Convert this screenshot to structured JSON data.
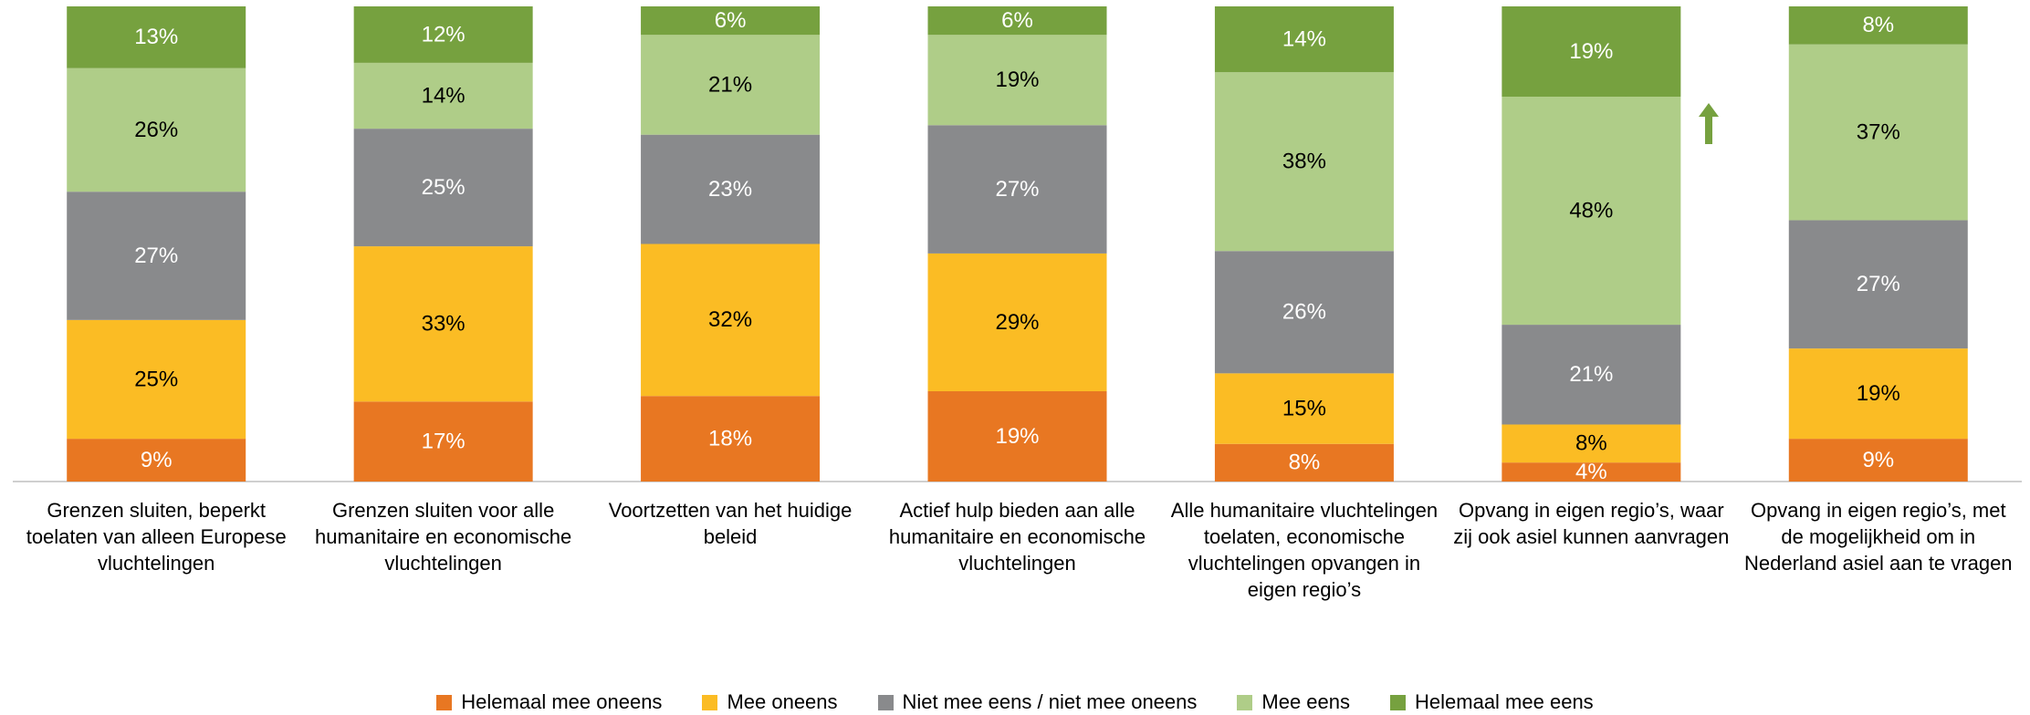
{
  "chart_data": {
    "type": "bar",
    "stacked": true,
    "categories": [
      "Grenzen sluiten, beperkt toelaten van alleen Europese vluchtelingen",
      "Grenzen sluiten voor alle humanitaire en economische vluchtelingen",
      "Voortzetten van het huidige beleid",
      "Actief hulp bieden aan alle humanitaire en economische vluchtelingen",
      "Alle humanitaire vluchtelingen toelaten, economische vluchtelingen opvangen in eigen regio’s",
      "Opvang in eigen regio’s, waar zij ook asiel kunnen aanvragen",
      "Opvang in eigen regio’s, met de mogelijkheid om in Nederland asiel aan te vragen"
    ],
    "series": [
      {
        "name": "Helemaal mee oneens",
        "color": "#e87722",
        "values": [
          9,
          17,
          18,
          19,
          8,
          4,
          9
        ],
        "value_labels": [
          "9%",
          "17%",
          "18%",
          "19%",
          "8%",
          "4%",
          "9%"
        ]
      },
      {
        "name": "Mee oneens",
        "color": "#fbbc24",
        "values": [
          25,
          33,
          32,
          29,
          15,
          8,
          19
        ],
        "value_labels": [
          "25%",
          "33%",
          "32%",
          "29%",
          "15%",
          "8%",
          "19%"
        ]
      },
      {
        "name": "Niet mee eens / niet mee oneens",
        "color": "#898a8c",
        "values": [
          27,
          25,
          23,
          27,
          26,
          21,
          27
        ],
        "value_labels": [
          "27%",
          "25%",
          "23%",
          "27%",
          "26%",
          "21%",
          "27%"
        ]
      },
      {
        "name": "Mee eens",
        "color": "#afcd88",
        "values": [
          26,
          14,
          21,
          19,
          38,
          48,
          37
        ],
        "value_labels": [
          "26%",
          "14%",
          "21%",
          "19%",
          "38%",
          "48%",
          "37%"
        ]
      },
      {
        "name": "Helemaal mee eens",
        "color": "#76a13f",
        "values": [
          13,
          12,
          6,
          6,
          14,
          19,
          8
        ],
        "value_labels": [
          "13%",
          "12%",
          "6%",
          "6%",
          "14%",
          "19%",
          "8%"
        ]
      }
    ],
    "legend": "bottom"
  }
}
